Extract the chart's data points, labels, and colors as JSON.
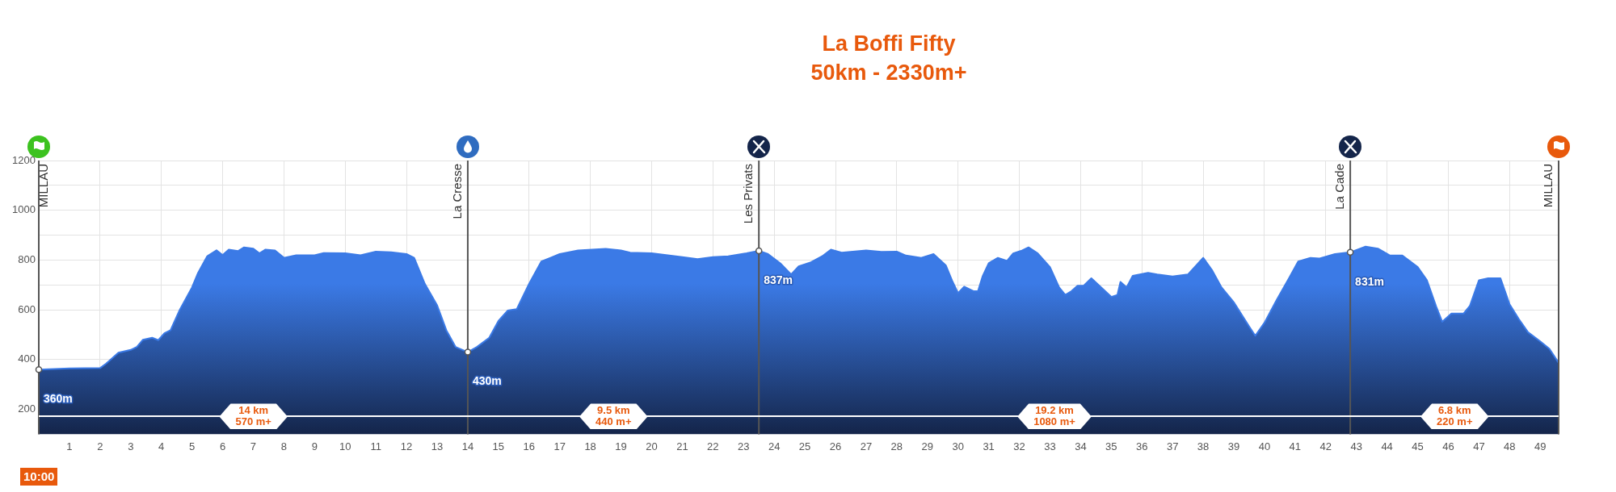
{
  "chart_data": {
    "type": "area",
    "title": "La Boffi Fifty",
    "subtitle": "50km - 2330m+",
    "x": [
      0,
      1,
      2,
      2.2,
      2.6,
      3,
      3.2,
      3.4,
      3.7,
      3.9,
      4.1,
      4.3,
      4.6,
      5,
      5.2,
      5.5,
      5.8,
      6,
      6.2,
      6.5,
      6.7,
      7,
      7.2,
      7.4,
      7.7,
      8,
      8.4,
      9,
      9.3,
      10,
      10.5,
      11,
      11.5,
      12,
      12.25,
      12.6,
      13,
      13.3,
      13.6,
      14,
      14.3,
      14.7,
      15,
      15.3,
      15.6,
      16,
      16.4,
      16.7,
      17,
      17.6,
      18.5,
      19,
      19.3,
      20,
      21,
      21.5,
      22,
      22.5,
      23.1,
      23.5,
      23.8,
      24.2,
      24.55,
      24.8,
      25.2,
      25.6,
      25.85,
      26.2,
      27,
      27.5,
      28,
      28.3,
      28.8,
      29.2,
      29.6,
      29.8,
      30,
      30.2,
      30.5,
      30.65,
      30.8,
      31,
      31.3,
      31.6,
      31.8,
      32.1,
      32.3,
      32.6,
      33,
      33.3,
      33.5,
      33.7,
      33.9,
      34.1,
      34.35,
      35,
      35.2,
      35.3,
      35.5,
      35.7,
      36.2,
      36.5,
      37,
      37.5,
      38,
      38.3,
      38.6,
      39,
      39.5,
      39.7,
      40,
      40.4,
      40.8,
      41.1,
      41.5,
      41.8,
      42.3,
      42.8,
      43.3,
      43.7,
      44.1,
      44.5,
      45,
      45.3,
      45.6,
      45.8,
      46.1,
      46.5,
      46.7,
      47,
      47.3,
      47.7,
      48,
      48.3,
      48.6,
      49,
      49.3,
      49.6
    ],
    "series": [
      {
        "color": "#3b7ae6",
        "values": [
          360,
          365,
          366,
          384,
          428,
          439,
          451,
          480,
          488,
          478,
          506,
          518,
          600,
          690,
          749,
          816,
          839,
          820,
          842,
          836,
          851,
          846,
          827,
          842,
          839,
          809,
          819,
          819,
          828,
          827,
          819,
          834,
          831,
          824,
          809,
          704,
          618,
          518,
          451,
          430,
          451,
          488,
          555,
          597,
          603,
          704,
          794,
          809,
          824,
          839,
          845,
          839,
          830,
          827,
          812,
          804,
          812,
          815,
          827,
          837,
          824,
          787,
          742,
          775,
          791,
          818,
          842,
          830,
          839,
          833,
          834,
          818,
          809,
          824,
          779,
          719,
          667,
          693,
          675,
          675,
          734,
          787,
          809,
          797,
          827,
          839,
          851,
          827,
          772,
          690,
          660,
          675,
          697,
          697,
          727,
          652,
          660,
          712,
          690,
          737,
          749,
          742,
          734,
          742,
          809,
          757,
          690,
          630,
          533,
          496,
          548,
          640,
          727,
          794,
          809,
          806,
          824,
          831,
          854,
          846,
          818,
          818,
          772,
          719,
          615,
          552,
          585,
          585,
          615,
          719,
          727,
          727,
          622,
          563,
          510,
          473,
          443,
          387
        ]
      }
    ],
    "xlim": [
      0,
      49.6
    ],
    "xticks": [
      1,
      2,
      3,
      4,
      5,
      6,
      7,
      8,
      9,
      10,
      11,
      12,
      13,
      14,
      15,
      16,
      17,
      18,
      19,
      20,
      21,
      22,
      23,
      24,
      25,
      26,
      27,
      28,
      29,
      30,
      31,
      32,
      33,
      34,
      35,
      36,
      37,
      38,
      39,
      40,
      41,
      42,
      43,
      44,
      45,
      46,
      47,
      48,
      49
    ],
    "ylim": [
      100,
      1200
    ],
    "yticks": [
      200,
      400,
      600,
      {
        "value": 700,
        "label": null
      },
      800,
      {
        "value": 900,
        "label": null
      },
      1000,
      {
        "value": 1100,
        "label": null
      },
      1200
    ],
    "grid": true,
    "legend": false,
    "ref_lines": [
      {
        "axis": "x",
        "value": 0,
        "label": "MILLAU",
        "color": "#555555"
      },
      {
        "axis": "x",
        "value": 14,
        "label": "La Cresse",
        "color": "#555555"
      },
      {
        "axis": "x",
        "value": 23.5,
        "label": "Les Privats",
        "color": "#555555"
      },
      {
        "axis": "x",
        "value": 42.8,
        "label": "La Cade",
        "color": "#555555"
      },
      {
        "axis": "x",
        "value": 49.6,
        "label": "MILLAU",
        "color": "#555555"
      }
    ],
    "annotations": [
      {
        "text": "360m",
        "x": 0,
        "y": 360
      },
      {
        "text": "430m",
        "x": 14,
        "y": 430
      },
      {
        "text": "837m",
        "x": 23.5,
        "y": 837
      },
      {
        "text": "831m",
        "x": 42.8,
        "y": 831
      },
      "14 km\n570 m+",
      "9.5 km\n440 m+",
      "19.2 km\n1080 m+",
      "6.8 km\n220 m+",
      "10:00"
    ]
  }
}
